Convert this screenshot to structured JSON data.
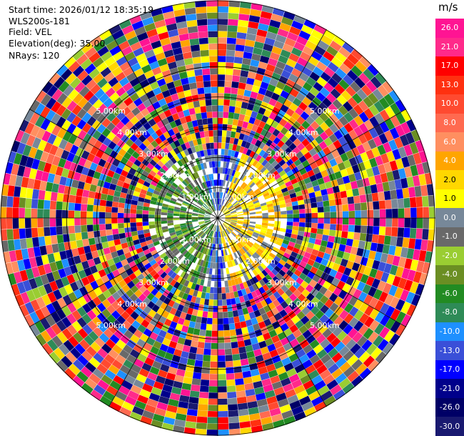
{
  "info": {
    "start_time": "Start time: 2026/01/12 18:35:19",
    "instrument": "WLS200s-181",
    "field": "Field: VEL",
    "elevation": "Elevation(deg): 35.00",
    "nrays": "NRays: 120"
  },
  "chart_data": {
    "type": "heatmap",
    "projection": "polar-ppi",
    "field": "VEL",
    "units": "m/s",
    "n_rays": 120,
    "elevation_deg": 35.0,
    "range_ring_labels_km": [
      "1.00km",
      "2.00km",
      "3.00km",
      "4.00km",
      "5.00km"
    ],
    "range_rings_km": [
      1,
      2,
      3,
      4,
      5
    ],
    "max_range_km": 7.2,
    "colorbar": {
      "title": "m/s",
      "ticks": [
        "26.0",
        "21.0",
        "17.0",
        "13.0",
        "10.0",
        "8.0",
        "6.0",
        "4.0",
        "2.0",
        "1.0",
        "0.0",
        "-1.0",
        "-2.0",
        "-4.0",
        "-6.0",
        "-8.0",
        "-10.0",
        "-13.0",
        "-17.0",
        "-21.0",
        "-26.0",
        "-30.0"
      ],
      "colors": [
        "#ff1493",
        "#ff2a8a",
        "#ff0000",
        "#ff3010",
        "#ff4a30",
        "#ff6a50",
        "#ff8f60",
        "#ffa500",
        "#ffd700",
        "#ffff00",
        "#778899",
        "#696969",
        "#9acd32",
        "#6b8e23",
        "#228b22",
        "#2e8b57",
        "#1e90ff",
        "#3a4fd8",
        "#0000ff",
        "#00008b",
        "#000066",
        "#191970"
      ]
    }
  }
}
